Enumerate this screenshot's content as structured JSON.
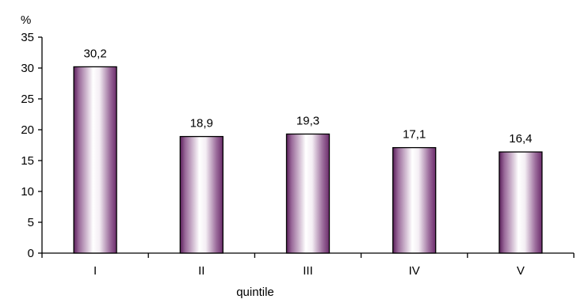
{
  "chart_data": {
    "type": "bar",
    "categories": [
      "I",
      "II",
      "III",
      "IV",
      "V"
    ],
    "values": [
      30.2,
      18.9,
      19.3,
      17.1,
      16.4
    ],
    "value_labels": [
      "30,2",
      "18,9",
      "19,3",
      "17,1",
      "16,4"
    ],
    "ylabel": "%",
    "xlabel": "quintile",
    "ylim": [
      0,
      35
    ],
    "yticks": [
      0,
      5,
      10,
      15,
      20,
      25,
      30,
      35
    ],
    "grid": false,
    "legend": "none",
    "bar_colors": {
      "edge": "#5a1f5a",
      "mid": "#ffffff",
      "dark": "#6b2c6b"
    }
  }
}
